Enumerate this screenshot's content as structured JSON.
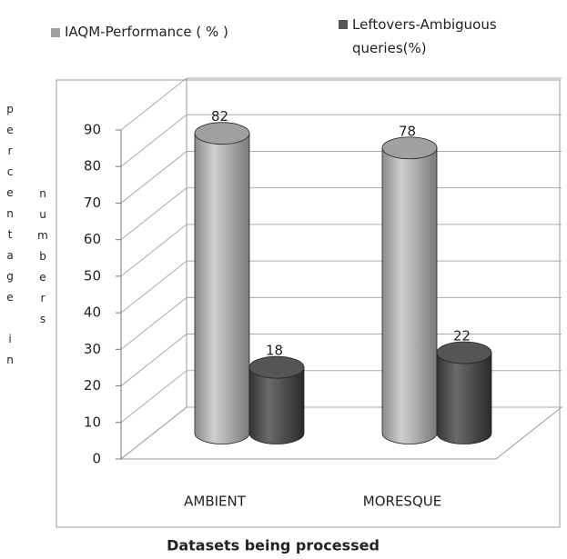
{
  "chart_data": {
    "type": "bar3d",
    "categories": [
      "AMBIENT",
      "MORESQUE"
    ],
    "series": [
      {
        "name": "IAQM-Performance ( % )",
        "color": "#a0a0a0",
        "values": [
          82,
          78
        ]
      },
      {
        "name": "Leftovers-Ambiguous queries(%)",
        "color": "#555555",
        "values": [
          18,
          22
        ]
      }
    ],
    "ylim": [
      0,
      90
    ],
    "yticks": [
      0,
      10,
      20,
      30,
      40,
      50,
      60,
      70,
      80,
      90
    ],
    "y_label": [
      "percentage in",
      "numbers"
    ],
    "x_label": "Datasets being processed",
    "grid": true,
    "legend": "top"
  }
}
